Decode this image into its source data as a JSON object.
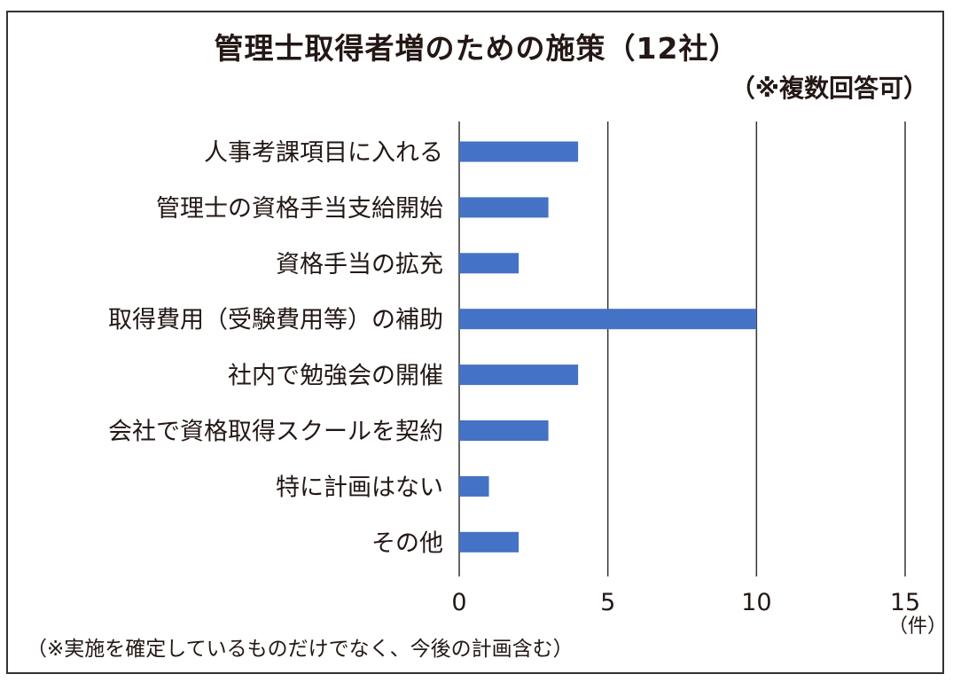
{
  "chart_data": {
    "type": "bar",
    "orientation": "horizontal",
    "title": "管理士取得者増のための施策（12社）",
    "subtitle": "（※複数回答可）",
    "categories": [
      "人事考課項目に入れる",
      "管理士の資格手当支給開始",
      "資格手当の拡充",
      "取得費用（受験費用等）の補助",
      "社内で勉強会の開催",
      "会社で資格取得スクールを契約",
      "特に計画はない",
      "その他"
    ],
    "values": [
      4,
      3,
      2,
      10,
      4,
      3,
      1,
      2
    ],
    "xlim": [
      0,
      15
    ],
    "xticks": [
      "0",
      "5",
      "10",
      "15"
    ],
    "xlabel": "（件）",
    "grid": true,
    "bar_color": "#4472c4",
    "note": "（※実施を確定しているものだけでなく、今後の計画含む）"
  }
}
